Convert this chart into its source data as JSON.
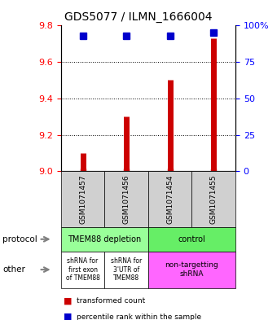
{
  "title": "GDS5077 / ILMN_1666004",
  "samples": [
    "GSM1071457",
    "GSM1071456",
    "GSM1071454",
    "GSM1071455"
  ],
  "red_values": [
    9.1,
    9.3,
    9.5,
    9.73
  ],
  "blue_values": [
    93,
    93,
    93,
    95
  ],
  "ylim_left": [
    9.0,
    9.8
  ],
  "ylim_right": [
    0,
    100
  ],
  "yticks_left": [
    9.0,
    9.2,
    9.4,
    9.6,
    9.8
  ],
  "yticks_right": [
    0,
    25,
    50,
    75,
    100
  ],
  "ytick_labels_right": [
    "0",
    "25",
    "50",
    "75",
    "100%"
  ],
  "red_color": "#cc0000",
  "blue_color": "#0000cc",
  "bar_width": 0.35,
  "protocol_labels": [
    "TMEM88 depletion",
    "control"
  ],
  "protocol_colors": [
    "#99ff99",
    "#66ff66"
  ],
  "other_labels": [
    "shRNA for\nfirst exon\nof TMEM88",
    "shRNA for\n3'UTR of\nTMEM88",
    "non-targetting\nshRNA"
  ],
  "other_colors": [
    "#ffffff",
    "#ffffff",
    "#ff66ff"
  ],
  "legend_red": "transformed count",
  "legend_blue": "percentile rank within the sample",
  "sample_bg_color": "#d0d0d0"
}
